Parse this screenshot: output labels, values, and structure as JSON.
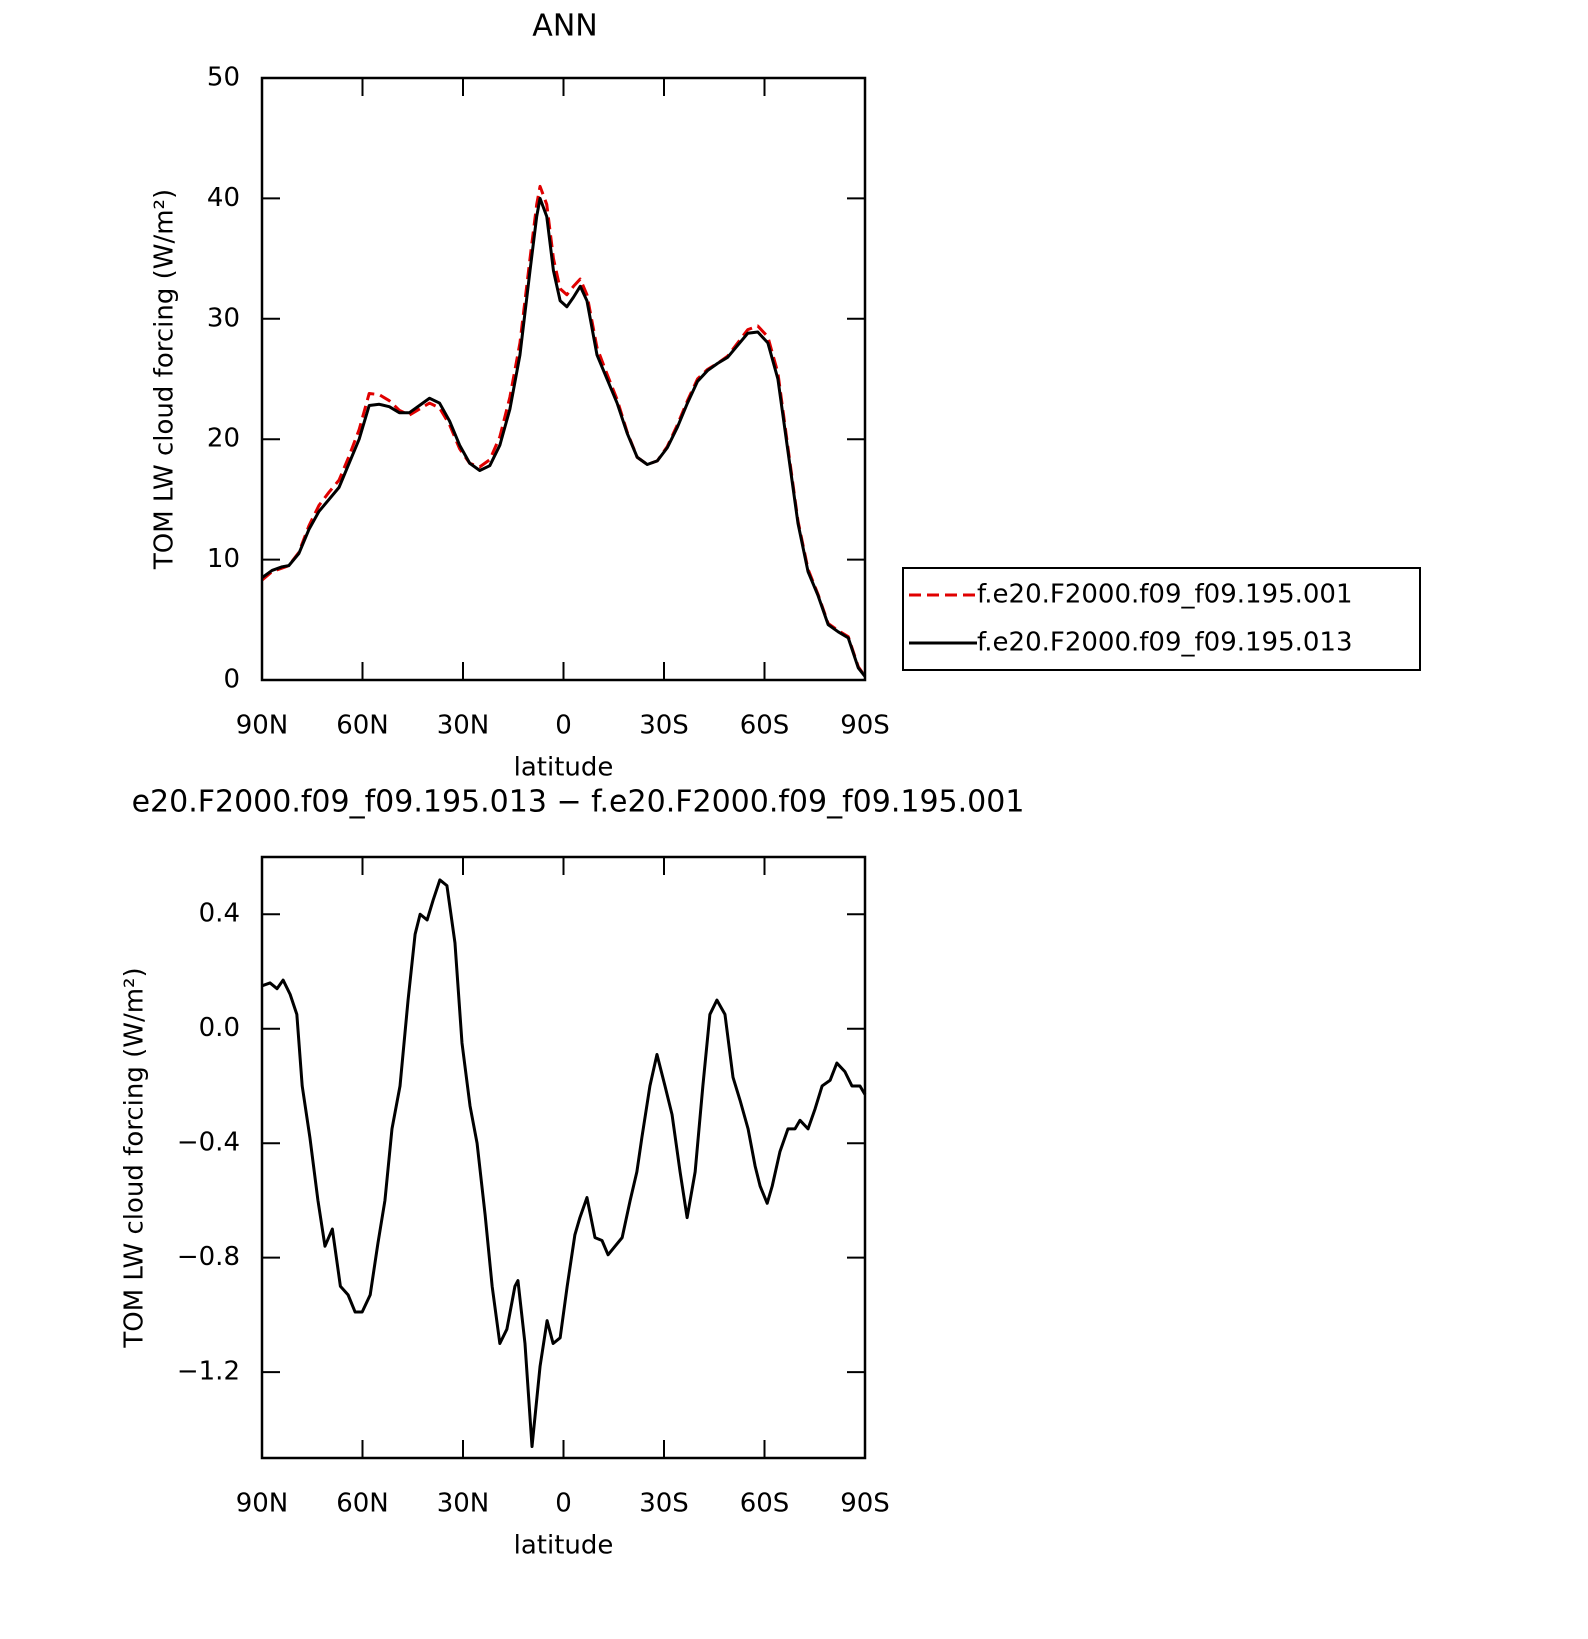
{
  "chart_data": [
    {
      "type": "line",
      "title": "ANN",
      "x_label": "latitude",
      "y_label": "TOM LW cloud forcing (W/m²)",
      "xlim": [
        90,
        -90
      ],
      "xticks": [
        {
          "value": 90,
          "label": "90N"
        },
        {
          "value": 60,
          "label": "60N"
        },
        {
          "value": 30,
          "label": "30N"
        },
        0,
        {
          "value": -30,
          "label": "30S"
        },
        {
          "value": -60,
          "label": "60S"
        },
        {
          "value": -90,
          "label": "90S"
        }
      ],
      "ylim": [
        0,
        50
      ],
      "yticks": [
        0,
        10,
        20,
        30,
        40,
        50
      ],
      "legend": "right",
      "x": [
        90,
        87,
        84,
        82,
        79,
        76,
        73,
        70,
        67,
        64,
        61,
        58,
        55,
        52,
        49,
        46,
        43,
        40,
        37,
        34,
        31,
        28,
        25,
        22,
        19,
        16,
        13,
        10,
        8,
        7,
        5,
        3,
        1,
        -1,
        -3,
        -5,
        -7,
        -10,
        -13,
        -16,
        -19,
        -22,
        -25,
        -28,
        -31,
        -34,
        -37,
        -40,
        -43,
        -46,
        -49,
        -52,
        -55,
        -58,
        -61,
        -64,
        -67,
        -70,
        -73,
        -76,
        -79,
        -82,
        -85,
        -88,
        -90
      ],
      "series": [
        {
          "name": "f.e20.F2000.f09_f09.195.001",
          "color": "#e00000",
          "line_style": "dashed",
          "values": [
            8.3,
            9,
            9.3,
            9.5,
            10.6,
            12.8,
            14.5,
            15.6,
            16.6,
            18.6,
            20.8,
            23.8,
            23.7,
            23.2,
            22.4,
            22,
            22.5,
            23,
            22.6,
            21.2,
            19.2,
            18,
            17.7,
            18.3,
            20.2,
            23.5,
            28,
            35,
            39.5,
            41,
            39.5,
            35,
            32.5,
            32,
            32.7,
            33.3,
            32,
            27.6,
            25.4,
            23.3,
            20.6,
            18.5,
            17.9,
            18.2,
            19.4,
            21.2,
            23.2,
            25,
            25.8,
            26.3,
            26.9,
            28,
            29.1,
            29.4,
            28.5,
            25.5,
            19.3,
            13.2,
            9.2,
            7.1,
            4.7,
            4.1,
            3.6,
            1.1,
            0.3
          ]
        },
        {
          "name": "f.e20.F2000.f09_f09.195.013",
          "color": "#000000",
          "line_style": "solid",
          "values": [
            8.5,
            9.1,
            9.4,
            9.5,
            10.5,
            12.5,
            14,
            15,
            16,
            18,
            20,
            22.8,
            22.9,
            22.7,
            22.2,
            22.2,
            22.8,
            23.4,
            23,
            21.5,
            19.5,
            18,
            17.4,
            17.8,
            19.5,
            22.5,
            27,
            34,
            38.5,
            40,
            38.5,
            34,
            31.5,
            31,
            31.8,
            32.7,
            31.5,
            27,
            25,
            23,
            20.5,
            18.5,
            17.9,
            18.2,
            19.3,
            21,
            23,
            24.8,
            25.7,
            26.3,
            26.8,
            27.8,
            28.8,
            28.9,
            28,
            25,
            19,
            13,
            9,
            7,
            4.6,
            4,
            3.5,
            1,
            0.3
          ]
        }
      ]
    },
    {
      "type": "line",
      "title": "e20.F2000.f09_f09.195.013 − f.e20.F2000.f09_f09.195.001",
      "x_label": "latitude",
      "y_label": "TOM LW cloud forcing (W/m²)",
      "xlim": [
        90,
        -90
      ],
      "xticks": [
        {
          "value": 90,
          "label": "90N"
        },
        {
          "value": 60,
          "label": "60N"
        },
        {
          "value": 30,
          "label": "30N"
        },
        0,
        {
          "value": -30,
          "label": "30S"
        },
        {
          "value": -60,
          "label": "60S"
        },
        {
          "value": -90,
          "label": "90S"
        }
      ],
      "ylim": [
        -1.5,
        0.6
      ],
      "yticks": [
        {
          "value": -1.2,
          "label": "−1.2"
        },
        {
          "value": -0.8,
          "label": "−0.8"
        },
        {
          "value": -0.4,
          "label": "−0.4"
        },
        {
          "value": 0,
          "label": "0.0"
        },
        0.4
      ],
      "x": [
        90,
        87.6,
        85.5,
        83.7,
        81.6,
        79.6,
        78,
        75.7,
        73.3,
        71.2,
        69,
        66.6,
        64.3,
        62.2,
        60.1,
        57.7,
        55.4,
        53.3,
        51.2,
        48.8,
        46.4,
        44.3,
        42.8,
        40.7,
        38.9,
        36.9,
        34.8,
        32.4,
        30.3,
        27.9,
        25.8,
        23.4,
        21.3,
        19,
        16.9,
        14.5,
        13.6,
        11.5,
        9.4,
        7,
        4.9,
        3.1,
        1,
        -1.1,
        -3.4,
        -4.9,
        -7,
        -9.4,
        -11.5,
        -13.3,
        -15.4,
        -17.5,
        -19.9,
        -21.9,
        -23.4,
        -25.8,
        -27.9,
        -30.3,
        -32.4,
        -34.8,
        -36.9,
        -39.3,
        -41.6,
        -43.7,
        -45.8,
        -48.2,
        -50.6,
        -52.7,
        -55.1,
        -57.2,
        -58.7,
        -60.8,
        -62.3,
        -64.6,
        -67,
        -69.1,
        -70.6,
        -73,
        -75.1,
        -77.2,
        -79.6,
        -81.6,
        -84,
        -86.1,
        -88.5,
        -90
      ],
      "series": [
        {
          "color": "#000000",
          "line_style": "solid",
          "values": [
            0.15,
            0.16,
            0.14,
            0.17,
            0.12,
            0.05,
            -0.2,
            -0.38,
            -0.6,
            -0.76,
            -0.7,
            -0.9,
            -0.93,
            -0.99,
            -0.99,
            -0.93,
            -0.75,
            -0.6,
            -0.35,
            -0.2,
            0.1,
            0.33,
            0.4,
            0.38,
            0.45,
            0.52,
            0.5,
            0.3,
            -0.05,
            -0.27,
            -0.4,
            -0.65,
            -0.9,
            -1.1,
            -1.05,
            -0.9,
            -0.88,
            -1.1,
            -1.46,
            -1.18,
            -1.02,
            -1.1,
            -1.08,
            -0.9,
            -0.72,
            -0.66,
            -0.59,
            -0.73,
            -0.74,
            -0.79,
            -0.76,
            -0.73,
            -0.6,
            -0.5,
            -0.38,
            -0.2,
            -0.09,
            -0.2,
            -0.3,
            -0.5,
            -0.66,
            -0.5,
            -0.2,
            0.05,
            0.1,
            0.05,
            -0.17,
            -0.25,
            -0.35,
            -0.48,
            -0.55,
            -0.61,
            -0.55,
            -0.43,
            -0.35,
            -0.35,
            -0.32,
            -0.35,
            -0.28,
            -0.2,
            -0.18,
            -0.12,
            -0.15,
            -0.2,
            -0.2,
            -0.23
          ]
        }
      ]
    }
  ]
}
